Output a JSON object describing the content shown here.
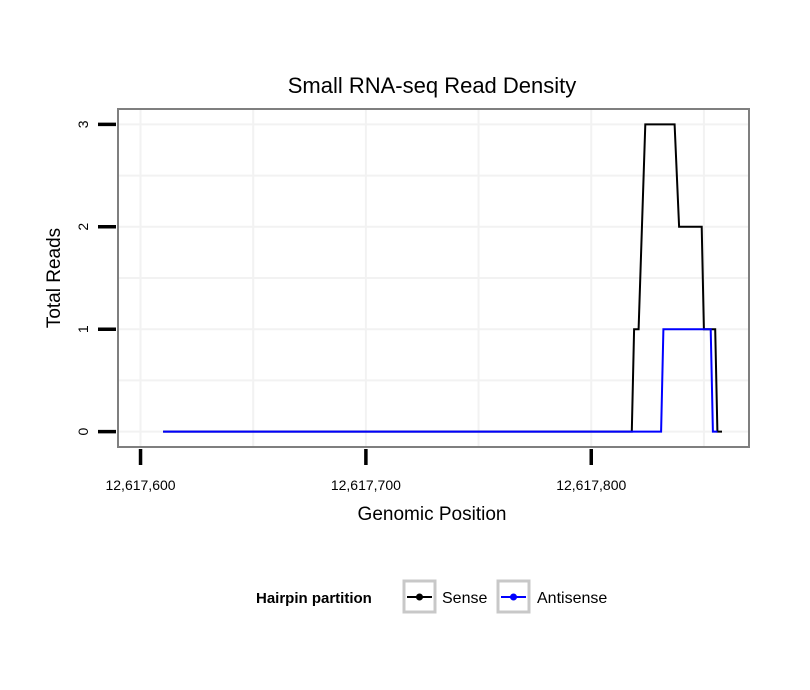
{
  "chart_data": {
    "type": "line",
    "title": "Small RNA-seq Read Density",
    "xlabel": "Genomic Position",
    "ylabel": "Total Reads",
    "xlim": [
      12617590,
      12617870
    ],
    "ylim": [
      -0.15,
      3.15
    ],
    "x_ticks": [
      12617600,
      12617700,
      12617800
    ],
    "x_tick_labels": [
      "12,617,600",
      "12,617,700",
      "12,617,800"
    ],
    "y_ticks": [
      0,
      1,
      2,
      3
    ],
    "y_tick_labels": [
      "0",
      "1",
      "2",
      "3"
    ],
    "grid": true,
    "legend": {
      "title": "Hairpin partition",
      "position": "bottom",
      "entries": [
        "Sense",
        "Antisense"
      ]
    },
    "series": [
      {
        "name": "Sense",
        "color": "#000000",
        "x": [
          12617610,
          12617818,
          12617819,
          12617821,
          12617824,
          12617837,
          12617839,
          12617849,
          12617850,
          12617855,
          12617856,
          12617858
        ],
        "y": [
          0,
          0,
          1,
          1,
          3,
          3,
          2,
          2,
          1,
          1,
          0,
          0
        ]
      },
      {
        "name": "Antisense",
        "color": "#0000ff",
        "x": [
          12617610,
          12617831,
          12617832,
          12617853,
          12617854,
          12617856
        ],
        "y": [
          0,
          0,
          1,
          1,
          0,
          0
        ]
      }
    ]
  }
}
